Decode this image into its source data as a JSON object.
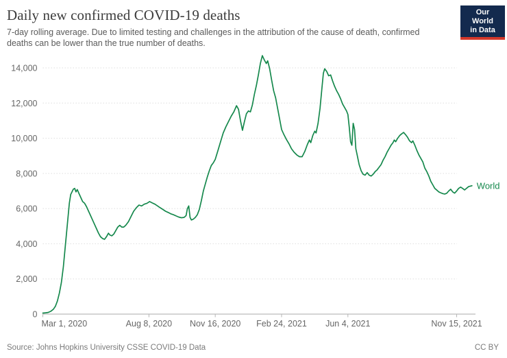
{
  "header": {
    "title": "Daily new confirmed COVID-19 deaths",
    "subtitle": "7-day rolling average. Due to limited testing and challenges in the attribution of the cause of death, confirmed deaths can be lower than the true number of deaths."
  },
  "logo": {
    "line1": "Our World",
    "line2": "in Data",
    "bg": "#132a4e",
    "accent": "#d4382b"
  },
  "footer": {
    "source": "Source: Johns Hopkins University CSSE COVID-19 Data",
    "license": "CC BY"
  },
  "chart_data": {
    "type": "line",
    "title": "Daily new confirmed COVID-19 deaths",
    "xlabel": "",
    "ylabel": "",
    "grid": "horizontal-dashed",
    "legend_position": "end-of-line",
    "ylim": [
      0,
      14900
    ],
    "yticks": [
      0,
      2000,
      4000,
      6000,
      8000,
      10000,
      12000,
      14000
    ],
    "xticks": [
      {
        "date": "2020-03-01",
        "label": "Mar 1, 2020"
      },
      {
        "date": "2020-08-08",
        "label": "Aug 8, 2020"
      },
      {
        "date": "2020-11-16",
        "label": "Nov 16, 2020"
      },
      {
        "date": "2021-02-24",
        "label": "Feb 24, 2021"
      },
      {
        "date": "2021-06-04",
        "label": "Jun 4, 2021"
      },
      {
        "date": "2021-11-15",
        "label": "Nov 15, 2021"
      }
    ],
    "x_range": [
      "2020-03-01",
      "2021-12-08"
    ],
    "series": [
      {
        "name": "World",
        "color": "#15884c",
        "points": [
          [
            "2020-03-01",
            60
          ],
          [
            "2020-03-05",
            75
          ],
          [
            "2020-03-09",
            95
          ],
          [
            "2020-03-13",
            160
          ],
          [
            "2020-03-17",
            280
          ],
          [
            "2020-03-20",
            450
          ],
          [
            "2020-03-23",
            750
          ],
          [
            "2020-03-26",
            1200
          ],
          [
            "2020-03-29",
            1800
          ],
          [
            "2020-04-01",
            2700
          ],
          [
            "2020-04-04",
            3900
          ],
          [
            "2020-04-07",
            5100
          ],
          [
            "2020-04-10",
            6300
          ],
          [
            "2020-04-12",
            6800
          ],
          [
            "2020-04-14",
            6950
          ],
          [
            "2020-04-16",
            7100
          ],
          [
            "2020-04-18",
            7150
          ],
          [
            "2020-04-20",
            6950
          ],
          [
            "2020-04-22",
            7080
          ],
          [
            "2020-04-24",
            6900
          ],
          [
            "2020-04-27",
            6650
          ],
          [
            "2020-04-30",
            6400
          ],
          [
            "2020-05-03",
            6300
          ],
          [
            "2020-05-06",
            6100
          ],
          [
            "2020-05-09",
            5850
          ],
          [
            "2020-05-12",
            5600
          ],
          [
            "2020-05-15",
            5350
          ],
          [
            "2020-05-18",
            5100
          ],
          [
            "2020-05-21",
            4850
          ],
          [
            "2020-05-24",
            4600
          ],
          [
            "2020-05-27",
            4400
          ],
          [
            "2020-05-30",
            4300
          ],
          [
            "2020-06-02",
            4250
          ],
          [
            "2020-06-05",
            4400
          ],
          [
            "2020-06-08",
            4600
          ],
          [
            "2020-06-10",
            4500
          ],
          [
            "2020-06-13",
            4450
          ],
          [
            "2020-06-16",
            4550
          ],
          [
            "2020-06-19",
            4750
          ],
          [
            "2020-06-22",
            4950
          ],
          [
            "2020-06-25",
            5050
          ],
          [
            "2020-06-28",
            4950
          ],
          [
            "2020-07-01",
            4950
          ],
          [
            "2020-07-04",
            5050
          ],
          [
            "2020-07-08",
            5250
          ],
          [
            "2020-07-12",
            5550
          ],
          [
            "2020-07-16",
            5850
          ],
          [
            "2020-07-20",
            6050
          ],
          [
            "2020-07-24",
            6200
          ],
          [
            "2020-07-28",
            6150
          ],
          [
            "2020-08-01",
            6250
          ],
          [
            "2020-08-05",
            6300
          ],
          [
            "2020-08-09",
            6400
          ],
          [
            "2020-08-13",
            6320
          ],
          [
            "2020-08-17",
            6250
          ],
          [
            "2020-08-21",
            6150
          ],
          [
            "2020-08-25",
            6050
          ],
          [
            "2020-08-29",
            5950
          ],
          [
            "2020-09-02",
            5850
          ],
          [
            "2020-09-06",
            5780
          ],
          [
            "2020-09-10",
            5700
          ],
          [
            "2020-09-14",
            5650
          ],
          [
            "2020-09-18",
            5580
          ],
          [
            "2020-09-22",
            5520
          ],
          [
            "2020-09-26",
            5480
          ],
          [
            "2020-09-30",
            5500
          ],
          [
            "2020-10-03",
            5600
          ],
          [
            "2020-10-05",
            6000
          ],
          [
            "2020-10-07",
            6150
          ],
          [
            "2020-10-09",
            5500
          ],
          [
            "2020-10-11",
            5350
          ],
          [
            "2020-10-14",
            5400
          ],
          [
            "2020-10-17",
            5500
          ],
          [
            "2020-10-20",
            5650
          ],
          [
            "2020-10-23",
            5950
          ],
          [
            "2020-10-26",
            6450
          ],
          [
            "2020-10-29",
            7000
          ],
          [
            "2020-11-01",
            7400
          ],
          [
            "2020-11-04",
            7800
          ],
          [
            "2020-11-07",
            8150
          ],
          [
            "2020-11-10",
            8450
          ],
          [
            "2020-11-13",
            8600
          ],
          [
            "2020-11-16",
            8800
          ],
          [
            "2020-11-20",
            9300
          ],
          [
            "2020-11-24",
            9800
          ],
          [
            "2020-11-28",
            10300
          ],
          [
            "2020-12-02",
            10650
          ],
          [
            "2020-12-06",
            10950
          ],
          [
            "2020-12-10",
            11250
          ],
          [
            "2020-12-14",
            11500
          ],
          [
            "2020-12-18",
            11850
          ],
          [
            "2020-12-21",
            11650
          ],
          [
            "2020-12-24",
            11000
          ],
          [
            "2020-12-27",
            10450
          ],
          [
            "2020-12-30",
            10950
          ],
          [
            "2021-01-02",
            11400
          ],
          [
            "2021-01-05",
            11550
          ],
          [
            "2021-01-08",
            11500
          ],
          [
            "2021-01-11",
            11900
          ],
          [
            "2021-01-14",
            12500
          ],
          [
            "2021-01-17",
            13000
          ],
          [
            "2021-01-20",
            13600
          ],
          [
            "2021-01-23",
            14250
          ],
          [
            "2021-01-26",
            14700
          ],
          [
            "2021-01-29",
            14450
          ],
          [
            "2021-02-01",
            14250
          ],
          [
            "2021-02-03",
            14400
          ],
          [
            "2021-02-06",
            13950
          ],
          [
            "2021-02-09",
            13300
          ],
          [
            "2021-02-12",
            12700
          ],
          [
            "2021-02-15",
            12300
          ],
          [
            "2021-02-18",
            11700
          ],
          [
            "2021-02-21",
            11100
          ],
          [
            "2021-02-24",
            10500
          ],
          [
            "2021-02-27",
            10250
          ],
          [
            "2021-03-03",
            9950
          ],
          [
            "2021-03-07",
            9700
          ],
          [
            "2021-03-11",
            9400
          ],
          [
            "2021-03-15",
            9200
          ],
          [
            "2021-03-19",
            9050
          ],
          [
            "2021-03-23",
            8950
          ],
          [
            "2021-03-27",
            8950
          ],
          [
            "2021-03-31",
            9250
          ],
          [
            "2021-04-04",
            9650
          ],
          [
            "2021-04-07",
            9900
          ],
          [
            "2021-04-09",
            9750
          ],
          [
            "2021-04-12",
            10150
          ],
          [
            "2021-04-15",
            10400
          ],
          [
            "2021-04-17",
            10300
          ],
          [
            "2021-04-20",
            10850
          ],
          [
            "2021-04-23",
            11700
          ],
          [
            "2021-04-26",
            12900
          ],
          [
            "2021-04-28",
            13700
          ],
          [
            "2021-04-30",
            13950
          ],
          [
            "2021-05-03",
            13800
          ],
          [
            "2021-05-06",
            13550
          ],
          [
            "2021-05-09",
            13600
          ],
          [
            "2021-05-12",
            13250
          ],
          [
            "2021-05-15",
            12950
          ],
          [
            "2021-05-18",
            12700
          ],
          [
            "2021-05-21",
            12500
          ],
          [
            "2021-05-24",
            12250
          ],
          [
            "2021-05-27",
            11950
          ],
          [
            "2021-05-30",
            11750
          ],
          [
            "2021-06-02",
            11550
          ],
          [
            "2021-06-04",
            11350
          ],
          [
            "2021-06-06",
            10650
          ],
          [
            "2021-06-08",
            9800
          ],
          [
            "2021-06-10",
            9600
          ],
          [
            "2021-06-12",
            10850
          ],
          [
            "2021-06-14",
            10500
          ],
          [
            "2021-06-16",
            9400
          ],
          [
            "2021-06-18",
            9050
          ],
          [
            "2021-06-21",
            8500
          ],
          [
            "2021-06-24",
            8150
          ],
          [
            "2021-06-27",
            7950
          ],
          [
            "2021-06-30",
            7900
          ],
          [
            "2021-07-03",
            8050
          ],
          [
            "2021-07-06",
            7900
          ],
          [
            "2021-07-09",
            7850
          ],
          [
            "2021-07-12",
            7950
          ],
          [
            "2021-07-15",
            8100
          ],
          [
            "2021-07-18",
            8200
          ],
          [
            "2021-07-21",
            8350
          ],
          [
            "2021-07-24",
            8500
          ],
          [
            "2021-07-27",
            8750
          ],
          [
            "2021-07-30",
            8950
          ],
          [
            "2021-08-02",
            9200
          ],
          [
            "2021-08-05",
            9400
          ],
          [
            "2021-08-08",
            9600
          ],
          [
            "2021-08-11",
            9750
          ],
          [
            "2021-08-13",
            9900
          ],
          [
            "2021-08-15",
            9800
          ],
          [
            "2021-08-18",
            10000
          ],
          [
            "2021-08-21",
            10150
          ],
          [
            "2021-08-24",
            10250
          ],
          [
            "2021-08-27",
            10330
          ],
          [
            "2021-08-30",
            10200
          ],
          [
            "2021-09-02",
            10050
          ],
          [
            "2021-09-05",
            9850
          ],
          [
            "2021-09-08",
            9750
          ],
          [
            "2021-09-10",
            9850
          ],
          [
            "2021-09-13",
            9600
          ],
          [
            "2021-09-16",
            9300
          ],
          [
            "2021-09-19",
            9050
          ],
          [
            "2021-09-22",
            8850
          ],
          [
            "2021-09-25",
            8650
          ],
          [
            "2021-09-28",
            8300
          ],
          [
            "2021-10-01",
            8100
          ],
          [
            "2021-10-04",
            7850
          ],
          [
            "2021-10-07",
            7550
          ],
          [
            "2021-10-10",
            7350
          ],
          [
            "2021-10-13",
            7150
          ],
          [
            "2021-10-16",
            7050
          ],
          [
            "2021-10-19",
            6950
          ],
          [
            "2021-10-22",
            6900
          ],
          [
            "2021-10-25",
            6850
          ],
          [
            "2021-10-28",
            6830
          ],
          [
            "2021-10-31",
            6870
          ],
          [
            "2021-11-03",
            7000
          ],
          [
            "2021-11-06",
            7100
          ],
          [
            "2021-11-09",
            6950
          ],
          [
            "2021-11-12",
            6880
          ],
          [
            "2021-11-15",
            7000
          ],
          [
            "2021-11-18",
            7150
          ],
          [
            "2021-11-21",
            7220
          ],
          [
            "2021-11-24",
            7150
          ],
          [
            "2021-11-27",
            7060
          ],
          [
            "2021-11-30",
            7160
          ],
          [
            "2021-12-03",
            7250
          ],
          [
            "2021-12-06",
            7280
          ],
          [
            "2021-12-08",
            7300
          ]
        ]
      }
    ]
  }
}
